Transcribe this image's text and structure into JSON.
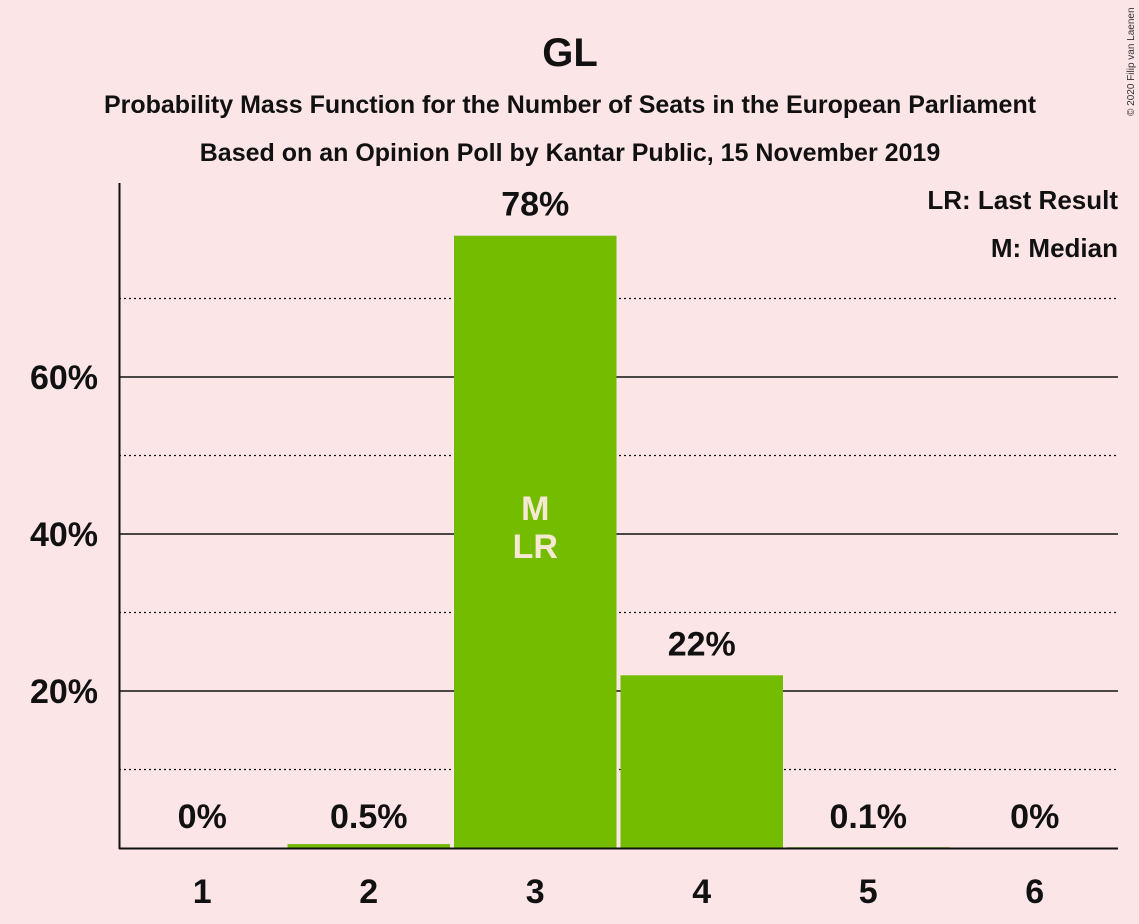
{
  "title": "GL",
  "subtitle1": "Probability Mass Function for the Number of Seats in the European Parliament",
  "subtitle2": "Based on an Opinion Poll by Kantar Public, 15 November 2019",
  "copyright": "© 2020 Filip van Laenen",
  "legend": {
    "lr": "LR: Last Result",
    "m": "M: Median"
  },
  "colors": {
    "background": "#fbe5e7",
    "bar": "#74bc00",
    "inside_label": "#f5e9d4"
  },
  "chart_data": {
    "type": "bar",
    "categories": [
      "1",
      "2",
      "3",
      "4",
      "5",
      "6"
    ],
    "values": [
      0,
      0.5,
      78,
      22,
      0.1,
      0
    ],
    "data_labels": [
      "0%",
      "0.5%",
      "78%",
      "22%",
      "0.1%",
      "0%"
    ],
    "inside_labels": [
      [],
      [],
      [
        "M",
        "LR"
      ],
      [],
      [],
      []
    ],
    "yticks": [
      20,
      40,
      60
    ],
    "ytick_labels": [
      "20%",
      "40%",
      "60%"
    ],
    "minor_gridlines": [
      10,
      30,
      50,
      70
    ],
    "ylim": [
      0,
      85
    ],
    "grid": true,
    "legend_position": "top-right"
  }
}
